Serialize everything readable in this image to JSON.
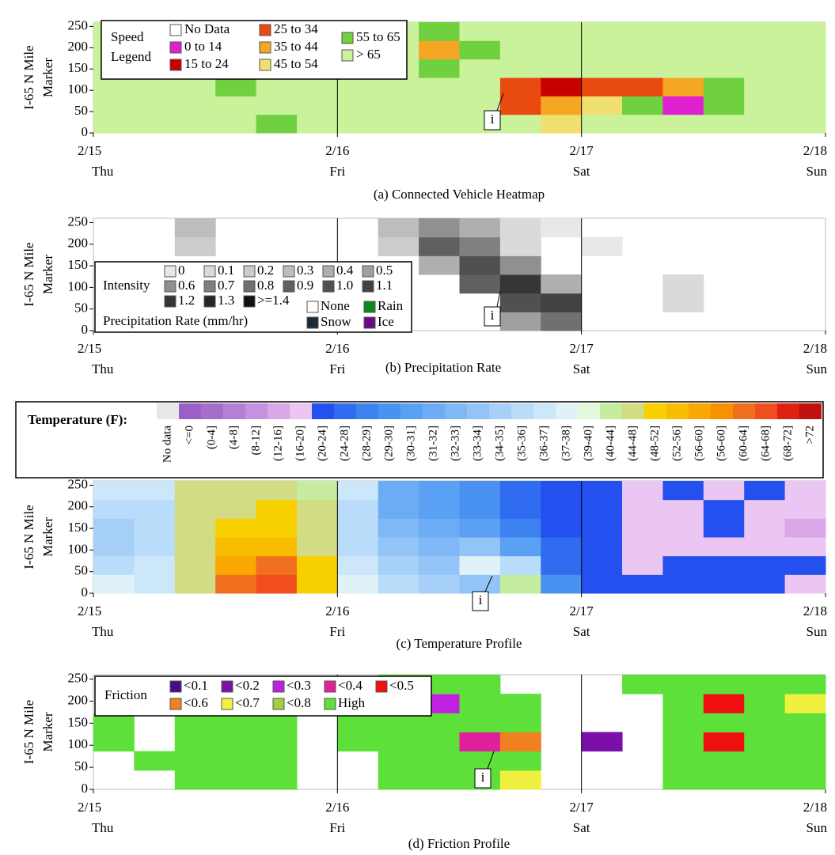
{
  "chart_data": [
    {
      "type": "heatmap",
      "caption": "(a) Connected Vehicle Heatmap",
      "ylabel": [
        "I-65 N Mile",
        "Marker"
      ],
      "xlim": [
        0,
        3
      ],
      "xticks": [
        {
          "value": 0,
          "label": "2/15"
        },
        {
          "value": 1,
          "label": "2/16"
        },
        {
          "value": 2,
          "label": "2/17"
        },
        {
          "value": 3,
          "label": "2/18"
        }
      ],
      "xtick_days": [
        "Thu",
        "Fri",
        "Sat",
        "Sun"
      ],
      "ylim": [
        0,
        260
      ],
      "yticks": [
        0,
        50,
        100,
        150,
        200,
        250
      ],
      "annotation": "i",
      "legend": {
        "title": [
          "Speed",
          "Legend"
        ],
        "items": [
          {
            "label": "No Data",
            "color": "#ffffff"
          },
          {
            "value": 14,
            "label": "0 to 14",
            "color": "#e020d0"
          },
          {
            "value": 24,
            "label": "15 to 24",
            "color": "#c80000"
          },
          {
            "value": 34,
            "label": "25 to 34",
            "color": "#e84a10"
          },
          {
            "value": 44,
            "label": "35 to 44",
            "color": "#f5a623"
          },
          {
            "value": 54,
            "label": "45 to 54",
            "color": "#f0e070"
          },
          {
            "value": 65,
            "label": "55 to 65",
            "color": "#6fd040"
          },
          {
            "value": 65,
            "label": "> 65",
            "color": "#c9f29a"
          }
        ]
      },
      "z": [
        [
          70,
          70,
          70,
          70,
          60,
          70,
          70,
          70,
          70,
          70,
          70,
          45,
          70,
          70,
          70,
          70,
          70,
          70
        ],
        [
          70,
          70,
          70,
          70,
          70,
          70,
          70,
          70,
          70,
          70,
          30,
          40,
          50,
          55,
          12,
          60,
          70,
          70
        ],
        [
          70,
          70,
          70,
          60,
          70,
          70,
          70,
          70,
          70,
          70,
          25,
          20,
          30,
          30,
          40,
          60,
          70,
          70
        ],
        [
          70,
          70,
          70,
          70,
          70,
          70,
          70,
          70,
          60,
          70,
          70,
          70,
          70,
          70,
          70,
          70,
          70,
          70
        ],
        [
          70,
          70,
          70,
          70,
          70,
          70,
          70,
          70,
          40,
          60,
          70,
          70,
          70,
          70,
          70,
          70,
          70,
          70
        ],
        [
          70,
          70,
          70,
          70,
          70,
          70,
          70,
          70,
          60,
          70,
          70,
          70,
          70,
          70,
          70,
          70,
          70,
          70
        ]
      ]
    },
    {
      "type": "heatmap",
      "caption": "(b) Precipitation Rate",
      "ylabel": [
        "I-65 N Mile",
        "Marker"
      ],
      "xlim": [
        0,
        3
      ],
      "xticks": [
        {
          "value": 0,
          "label": "2/15"
        },
        {
          "value": 1,
          "label": "2/16"
        },
        {
          "value": 2,
          "label": "2/17"
        },
        {
          "value": 3,
          "label": "2/18"
        }
      ],
      "xtick_days": [
        "Thu",
        "Fri",
        "Sat",
        "Sun"
      ],
      "ylim": [
        0,
        260
      ],
      "yticks": [
        0,
        50,
        100,
        150,
        200,
        250
      ],
      "annotation": "i",
      "legend": {
        "title": [
          "Intensity",
          "Precipitation Rate (mm/hr)"
        ],
        "items": [
          {
            "value": 0,
            "label": "0",
            "color": "#e8e8e8"
          },
          {
            "value": 0.1,
            "label": "0.1",
            "color": "#dadada"
          },
          {
            "value": 0.2,
            "label": "0.2",
            "color": "#cccccc"
          },
          {
            "value": 0.3,
            "label": "0.3",
            "color": "#bdbdbd"
          },
          {
            "value": 0.4,
            "label": "0.4",
            "color": "#afafaf"
          },
          {
            "value": 0.5,
            "label": "0.5",
            "color": "#a0a0a0"
          },
          {
            "value": 0.6,
            "label": "0.6",
            "color": "#909090"
          },
          {
            "value": 0.7,
            "label": "0.7",
            "color": "#808080"
          },
          {
            "value": 0.8,
            "label": "0.8",
            "color": "#707070"
          },
          {
            "value": 0.9,
            "label": "0.9",
            "color": "#606060"
          },
          {
            "value": 1,
            "label": "1.0",
            "color": "#505050"
          },
          {
            "value": 1.1,
            "label": "1.1",
            "color": "#424242"
          },
          {
            "value": 1.2,
            "label": "1.2",
            "color": "#353535"
          },
          {
            "value": 1.3,
            "label": "1.3",
            "color": "#262626"
          },
          {
            "value": 1.4,
            "label": ">=1.4",
            "color": "#111111"
          }
        ],
        "types": [
          {
            "label": "None",
            "color": "#ffffff"
          },
          {
            "label": "Rain",
            "color": "#0a8a1e"
          },
          {
            "label": "Snow",
            "color": "#1c2b3a"
          },
          {
            "label": "Ice",
            "color": "#6a0a8a"
          }
        ]
      },
      "z": [
        [
          null,
          null,
          null,
          null,
          null,
          null,
          null,
          null,
          null,
          null,
          0.5,
          0.8,
          null,
          null,
          null,
          null,
          null,
          null
        ],
        [
          null,
          null,
          null,
          null,
          null,
          null,
          null,
          null,
          null,
          null,
          1,
          1.1,
          null,
          null,
          0.1,
          null,
          null,
          null
        ],
        [
          null,
          null,
          null,
          null,
          null,
          null,
          null,
          null,
          null,
          0.9,
          1.2,
          0.4,
          null,
          null,
          0.1,
          null,
          null,
          null
        ],
        [
          null,
          null,
          null,
          null,
          null,
          null,
          null,
          null,
          0.4,
          1,
          0.6,
          null,
          null,
          null,
          null,
          null,
          null,
          null
        ],
        [
          null,
          null,
          0.2,
          null,
          null,
          null,
          null,
          0.2,
          0.9,
          0.7,
          0.1,
          null,
          0,
          null,
          null,
          null,
          null,
          null
        ],
        [
          null,
          null,
          0.3,
          null,
          null,
          null,
          null,
          0.3,
          0.6,
          0.4,
          0.1,
          0,
          null,
          null,
          null,
          null,
          null,
          null
        ]
      ]
    },
    {
      "type": "heatmap",
      "caption": "(c) Temperature Profile",
      "ylabel": [
        "I-65 N Mile",
        "Marker"
      ],
      "xlim": [
        0,
        3
      ],
      "xticks": [
        {
          "value": 0,
          "label": "2/15"
        },
        {
          "value": 1,
          "label": "2/16"
        },
        {
          "value": 2,
          "label": "2/17"
        },
        {
          "value": 3,
          "label": "2/18"
        }
      ],
      "xtick_days": [
        "Thu",
        "Fri",
        "Sat",
        "Sun"
      ],
      "ylim": [
        0,
        260
      ],
      "yticks": [
        0,
        50,
        100,
        150,
        200,
        250
      ],
      "annotation": "i",
      "legend": {
        "title": [
          "Temperature (F):"
        ],
        "items": [
          {
            "label": "No data",
            "color": "#e8e8e8"
          },
          {
            "value": 0,
            "label": "<=0",
            "color": "#9c5fc8"
          },
          {
            "value": 4,
            "label": "(0-4]",
            "color": "#a66dcd"
          },
          {
            "value": 8,
            "label": "(4-8]",
            "color": "#b67fd6"
          },
          {
            "value": 12,
            "label": "(8-12]",
            "color": "#c890e0"
          },
          {
            "value": 16,
            "label": "(12-16]",
            "color": "#dba6e8"
          },
          {
            "value": 20,
            "label": "(16-20]",
            "color": "#ecc6f2"
          },
          {
            "value": 24,
            "label": "(20-24]",
            "color": "#2450f0"
          },
          {
            "value": 28,
            "label": "(24-28]",
            "color": "#2f6cf0"
          },
          {
            "value": 29,
            "label": "(28-29]",
            "color": "#3c82f0"
          },
          {
            "value": 30,
            "label": "(29-30]",
            "color": "#4a92f2"
          },
          {
            "value": 31,
            "label": "(30-31]",
            "color": "#5aa0f4"
          },
          {
            "value": 32,
            "label": "(31-32]",
            "color": "#6cacf4"
          },
          {
            "value": 33,
            "label": "(32-33]",
            "color": "#80b8f6"
          },
          {
            "value": 34,
            "label": "(33-34]",
            "color": "#93c4f8"
          },
          {
            "value": 35,
            "label": "(34-35]",
            "color": "#a6d0f8"
          },
          {
            "value": 36,
            "label": "(35-36]",
            "color": "#b8dcfa"
          },
          {
            "value": 37,
            "label": "(36-37]",
            "color": "#cce6fa"
          },
          {
            "value": 38,
            "label": "(37-38]",
            "color": "#e0f2f8"
          },
          {
            "value": 40,
            "label": "(39-40]",
            "color": "#e6f8dc"
          },
          {
            "value": 44,
            "label": "(40-44]",
            "color": "#c6eca0"
          },
          {
            "value": 48,
            "label": "(44-48]",
            "color": "#d2dc84"
          },
          {
            "value": 52,
            "label": "(48-52]",
            "color": "#f8d000"
          },
          {
            "value": 56,
            "label": "(52-56]",
            "color": "#f8bc00"
          },
          {
            "value": 60,
            "label": "(56-60]",
            "color": "#f8a800"
          },
          {
            "value": 60,
            "label": "(56-60]",
            "color": "#f89000"
          },
          {
            "value": 64,
            "label": "(60-64]",
            "color": "#f07020"
          },
          {
            "value": 68,
            "label": "(64-68]",
            "color": "#f04e1e"
          },
          {
            "value": 72,
            "label": "(68-72]",
            "color": "#e02010"
          },
          {
            "value": 72,
            "label": ">72",
            "color": "#c01010"
          }
        ]
      },
      "z": [
        [
          38,
          37,
          48,
          62,
          66,
          52,
          38,
          36,
          35,
          34,
          44,
          30,
          24,
          22,
          23,
          22,
          24,
          20
        ],
        [
          36,
          37,
          47,
          58,
          62,
          50,
          37,
          35,
          34,
          38,
          36,
          28,
          22,
          20,
          22,
          22,
          21,
          22
        ],
        [
          35,
          36,
          46,
          54,
          56,
          48,
          36,
          34,
          33,
          34,
          31,
          26,
          22,
          18,
          17,
          20,
          18,
          18
        ],
        [
          35,
          36,
          46,
          50,
          52,
          46,
          36,
          33,
          32,
          31,
          29,
          24,
          22,
          17,
          18,
          22,
          17,
          16
        ],
        [
          36,
          36,
          45,
          47,
          50,
          46,
          36,
          32,
          31,
          30,
          28,
          24,
          23,
          18,
          20,
          22,
          18,
          17
        ],
        [
          37,
          37,
          45,
          46,
          48,
          44,
          37,
          32,
          31,
          30,
          28,
          24,
          23,
          18,
          22,
          17,
          22,
          18
        ]
      ]
    },
    {
      "type": "heatmap",
      "caption": "(d) Friction Profile",
      "ylabel": [
        "I-65 N Mile",
        "Marker"
      ],
      "xlim": [
        0,
        3
      ],
      "xticks": [
        {
          "value": 0,
          "label": "2/15"
        },
        {
          "value": 1,
          "label": "2/16"
        },
        {
          "value": 2,
          "label": "2/17"
        },
        {
          "value": 3,
          "label": "2/18"
        }
      ],
      "xtick_days": [
        "Thu",
        "Fri",
        "Sat",
        "Sun"
      ],
      "ylim": [
        0,
        260
      ],
      "yticks": [
        0,
        50,
        100,
        150,
        200,
        250
      ],
      "annotation": "i",
      "legend": {
        "title": [
          "Friction"
        ],
        "items": [
          {
            "value": 0.1,
            "label": "<0.1",
            "color": "#4b0a8c"
          },
          {
            "value": 0.2,
            "label": "<0.2",
            "color": "#7a10a8"
          },
          {
            "value": 0.3,
            "label": "<0.3",
            "color": "#c020e0"
          },
          {
            "value": 0.4,
            "label": "<0.4",
            "color": "#e0209a"
          },
          {
            "value": 0.5,
            "label": "<0.5",
            "color": "#f01010"
          },
          {
            "value": 0.6,
            "label": "<0.6",
            "color": "#f08020"
          },
          {
            "value": 0.7,
            "label": "<0.7",
            "color": "#f0f040"
          },
          {
            "value": 0.8,
            "label": "<0.8",
            "color": "#a0d040"
          },
          {
            "label": "High",
            "color": "#5ee03a"
          }
        ]
      },
      "z": [
        [
          null,
          null,
          0.9,
          0.9,
          0.9,
          null,
          null,
          0.9,
          0.9,
          0.9,
          0.7,
          null,
          null,
          null,
          0.9,
          0.9,
          0.9,
          0.9
        ],
        [
          null,
          0.9,
          0.9,
          0.9,
          0.9,
          null,
          null,
          0.9,
          0.9,
          0.9,
          0.9,
          null,
          null,
          null,
          0.9,
          0.9,
          0.9,
          0.9
        ],
        [
          0.9,
          null,
          0.9,
          0.9,
          0.9,
          null,
          0.9,
          0.9,
          0.9,
          0.35,
          0.55,
          null,
          0.15,
          null,
          0.9,
          0.45,
          0.9,
          0.9
        ],
        [
          0.9,
          null,
          0.9,
          0.9,
          0.9,
          null,
          0.9,
          0.9,
          0.9,
          0.9,
          0.9,
          null,
          null,
          null,
          0.9,
          0.9,
          0.9,
          0.9
        ],
        [
          null,
          null,
          0.9,
          0.9,
          0.9,
          null,
          null,
          0.9,
          0.25,
          0.9,
          0.9,
          null,
          null,
          null,
          0.9,
          0.45,
          0.9,
          0.65
        ],
        [
          null,
          null,
          null,
          null,
          null,
          null,
          null,
          0.9,
          0.9,
          0.9,
          null,
          null,
          null,
          0.9,
          0.9,
          0.9,
          0.9,
          0.9
        ]
      ]
    }
  ]
}
